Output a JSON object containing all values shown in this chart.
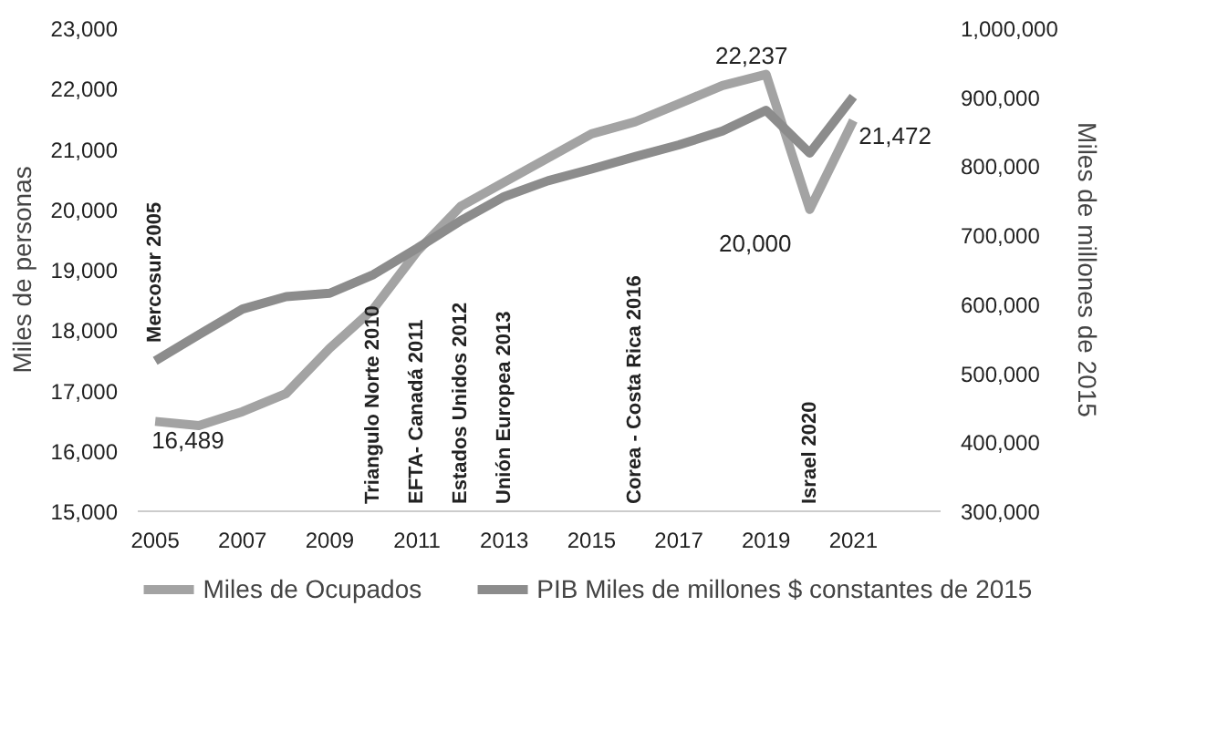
{
  "chart_data": {
    "type": "line",
    "x": [
      2005,
      2006,
      2007,
      2008,
      2009,
      2010,
      2011,
      2012,
      2013,
      2014,
      2015,
      2016,
      2017,
      2018,
      2019,
      2020,
      2021
    ],
    "series": [
      {
        "name": "Miles de Ocupados",
        "color": "#a3a3a3",
        "values": [
          16489,
          16420,
          16650,
          16950,
          17700,
          18350,
          19300,
          20050,
          20450,
          20850,
          21250,
          21450,
          21750,
          22050,
          22237,
          20000,
          21472
        ],
        "value_labels": [
          "16,489",
          null,
          null,
          null,
          null,
          null,
          null,
          null,
          null,
          null,
          null,
          null,
          null,
          null,
          "22,237",
          "20,000",
          "21,472"
        ]
      },
      {
        "name": "PIB Miles de millones $ constantes de 2015",
        "color": "#8c8c8c",
        "axis": "y2",
        "values": [
          518000,
          556000,
          593000,
          611000,
          616000,
          643000,
          681000,
          721000,
          756000,
          779000,
          796000,
          814000,
          831000,
          851000,
          881000,
          819000,
          901000
        ]
      }
    ],
    "ylabel": "Miles de personas",
    "y2label": "Miles de millones de 2015",
    "xlim": [
      2004.6,
      2023.0
    ],
    "xticks": [
      2005,
      2007,
      2009,
      2011,
      2013,
      2015,
      2017,
      2019,
      2021
    ],
    "ylim": [
      15000,
      23000
    ],
    "yticks": [
      {
        "value": 15000,
        "label": "15,000"
      },
      {
        "value": 16000,
        "label": "16,000"
      },
      {
        "value": 17000,
        "label": "17,000"
      },
      {
        "value": 18000,
        "label": "18,000"
      },
      {
        "value": 19000,
        "label": "19,000"
      },
      {
        "value": 20000,
        "label": "20,000"
      },
      {
        "value": 21000,
        "label": "21,000"
      },
      {
        "value": 22000,
        "label": "22,000"
      },
      {
        "value": 23000,
        "label": "23,000"
      }
    ],
    "y2lim": [
      300000,
      1000000
    ],
    "y2ticks": [
      {
        "value": 300000,
        "label": "300,000"
      },
      {
        "value": 400000,
        "label": "400,000"
      },
      {
        "value": 500000,
        "label": "500,000"
      },
      {
        "value": 600000,
        "label": "600,000"
      },
      {
        "value": 700000,
        "label": "700,000"
      },
      {
        "value": 800000,
        "label": "800,000"
      },
      {
        "value": 900000,
        "label": "900,000"
      },
      {
        "value": 1000000,
        "label": "1,000,000"
      }
    ],
    "annotations": [
      "Mercosur 2005",
      "Triangulo Norte  2010",
      "EFTA- Canadá  2011",
      "Estados Unidos  2012",
      "Unión Europea  2013",
      "Corea - Costa Rica  2016",
      "Israel  2020"
    ],
    "grid": false,
    "legend": "bottom",
    "marker": "none",
    "line_style": "solid"
  }
}
